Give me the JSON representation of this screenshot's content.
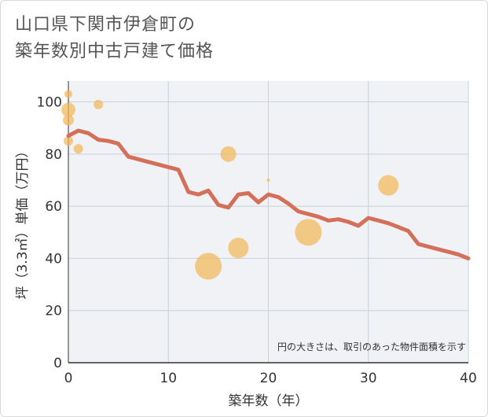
{
  "title_lines": [
    "山口県下関市伊倉町の",
    "築年数別中古戸建て価格"
  ],
  "chart_data": {
    "type": "scatter",
    "title": "山口県下関市伊倉町の築年数別中古戸建て価格",
    "xlabel": "築年数（年）",
    "ylabel": "坪（3.3㎡）単価（万円）",
    "xlim": [
      0,
      40
    ],
    "ylim": [
      0,
      108
    ],
    "xticks": [
      0,
      10,
      20,
      30,
      40
    ],
    "yticks": [
      0,
      20,
      40,
      60,
      80,
      100
    ],
    "grid": true,
    "note": "円の大きさは、取引のあった物件面積を示す",
    "colors": {
      "line": "#d4705a",
      "bubble": "#f2b75a",
      "grid": "#c8d2da",
      "plot_bg": "#f0f2f5"
    },
    "scatter": [
      {
        "x": 0,
        "y": 103,
        "size": 5
      },
      {
        "x": 0,
        "y": 97,
        "size": 9
      },
      {
        "x": 0,
        "y": 93,
        "size": 7
      },
      {
        "x": 0,
        "y": 85,
        "size": 6
      },
      {
        "x": 1,
        "y": 82,
        "size": 6
      },
      {
        "x": 3,
        "y": 99,
        "size": 6
      },
      {
        "x": 14,
        "y": 37,
        "size": 17
      },
      {
        "x": 16,
        "y": 80,
        "size": 10
      },
      {
        "x": 17,
        "y": 44,
        "size": 13
      },
      {
        "x": 20,
        "y": 70,
        "size": 2
      },
      {
        "x": 24,
        "y": 50,
        "size": 17
      },
      {
        "x": 32,
        "y": 68,
        "size": 13
      }
    ],
    "line": {
      "x": [
        0,
        1,
        2,
        3,
        4,
        5,
        6,
        7,
        8,
        9,
        10,
        11,
        12,
        13,
        14,
        15,
        16,
        17,
        18,
        19,
        20,
        21,
        22,
        23,
        24,
        25,
        26,
        27,
        28,
        29,
        30,
        31,
        32,
        33,
        34,
        35,
        36,
        37,
        38,
        39,
        40
      ],
      "y": [
        87,
        89,
        88,
        85.5,
        85,
        84,
        79,
        78,
        77,
        76,
        75,
        74,
        65.5,
        64.5,
        66,
        60.5,
        59.5,
        64.5,
        65,
        61.5,
        64.5,
        63.5,
        61,
        58,
        57,
        56,
        54.5,
        55,
        54,
        52.5,
        55.5,
        54.5,
        53.5,
        52,
        50.5,
        45.5,
        44.5,
        43.5,
        42.5,
        41.5,
        40
      ]
    }
  }
}
